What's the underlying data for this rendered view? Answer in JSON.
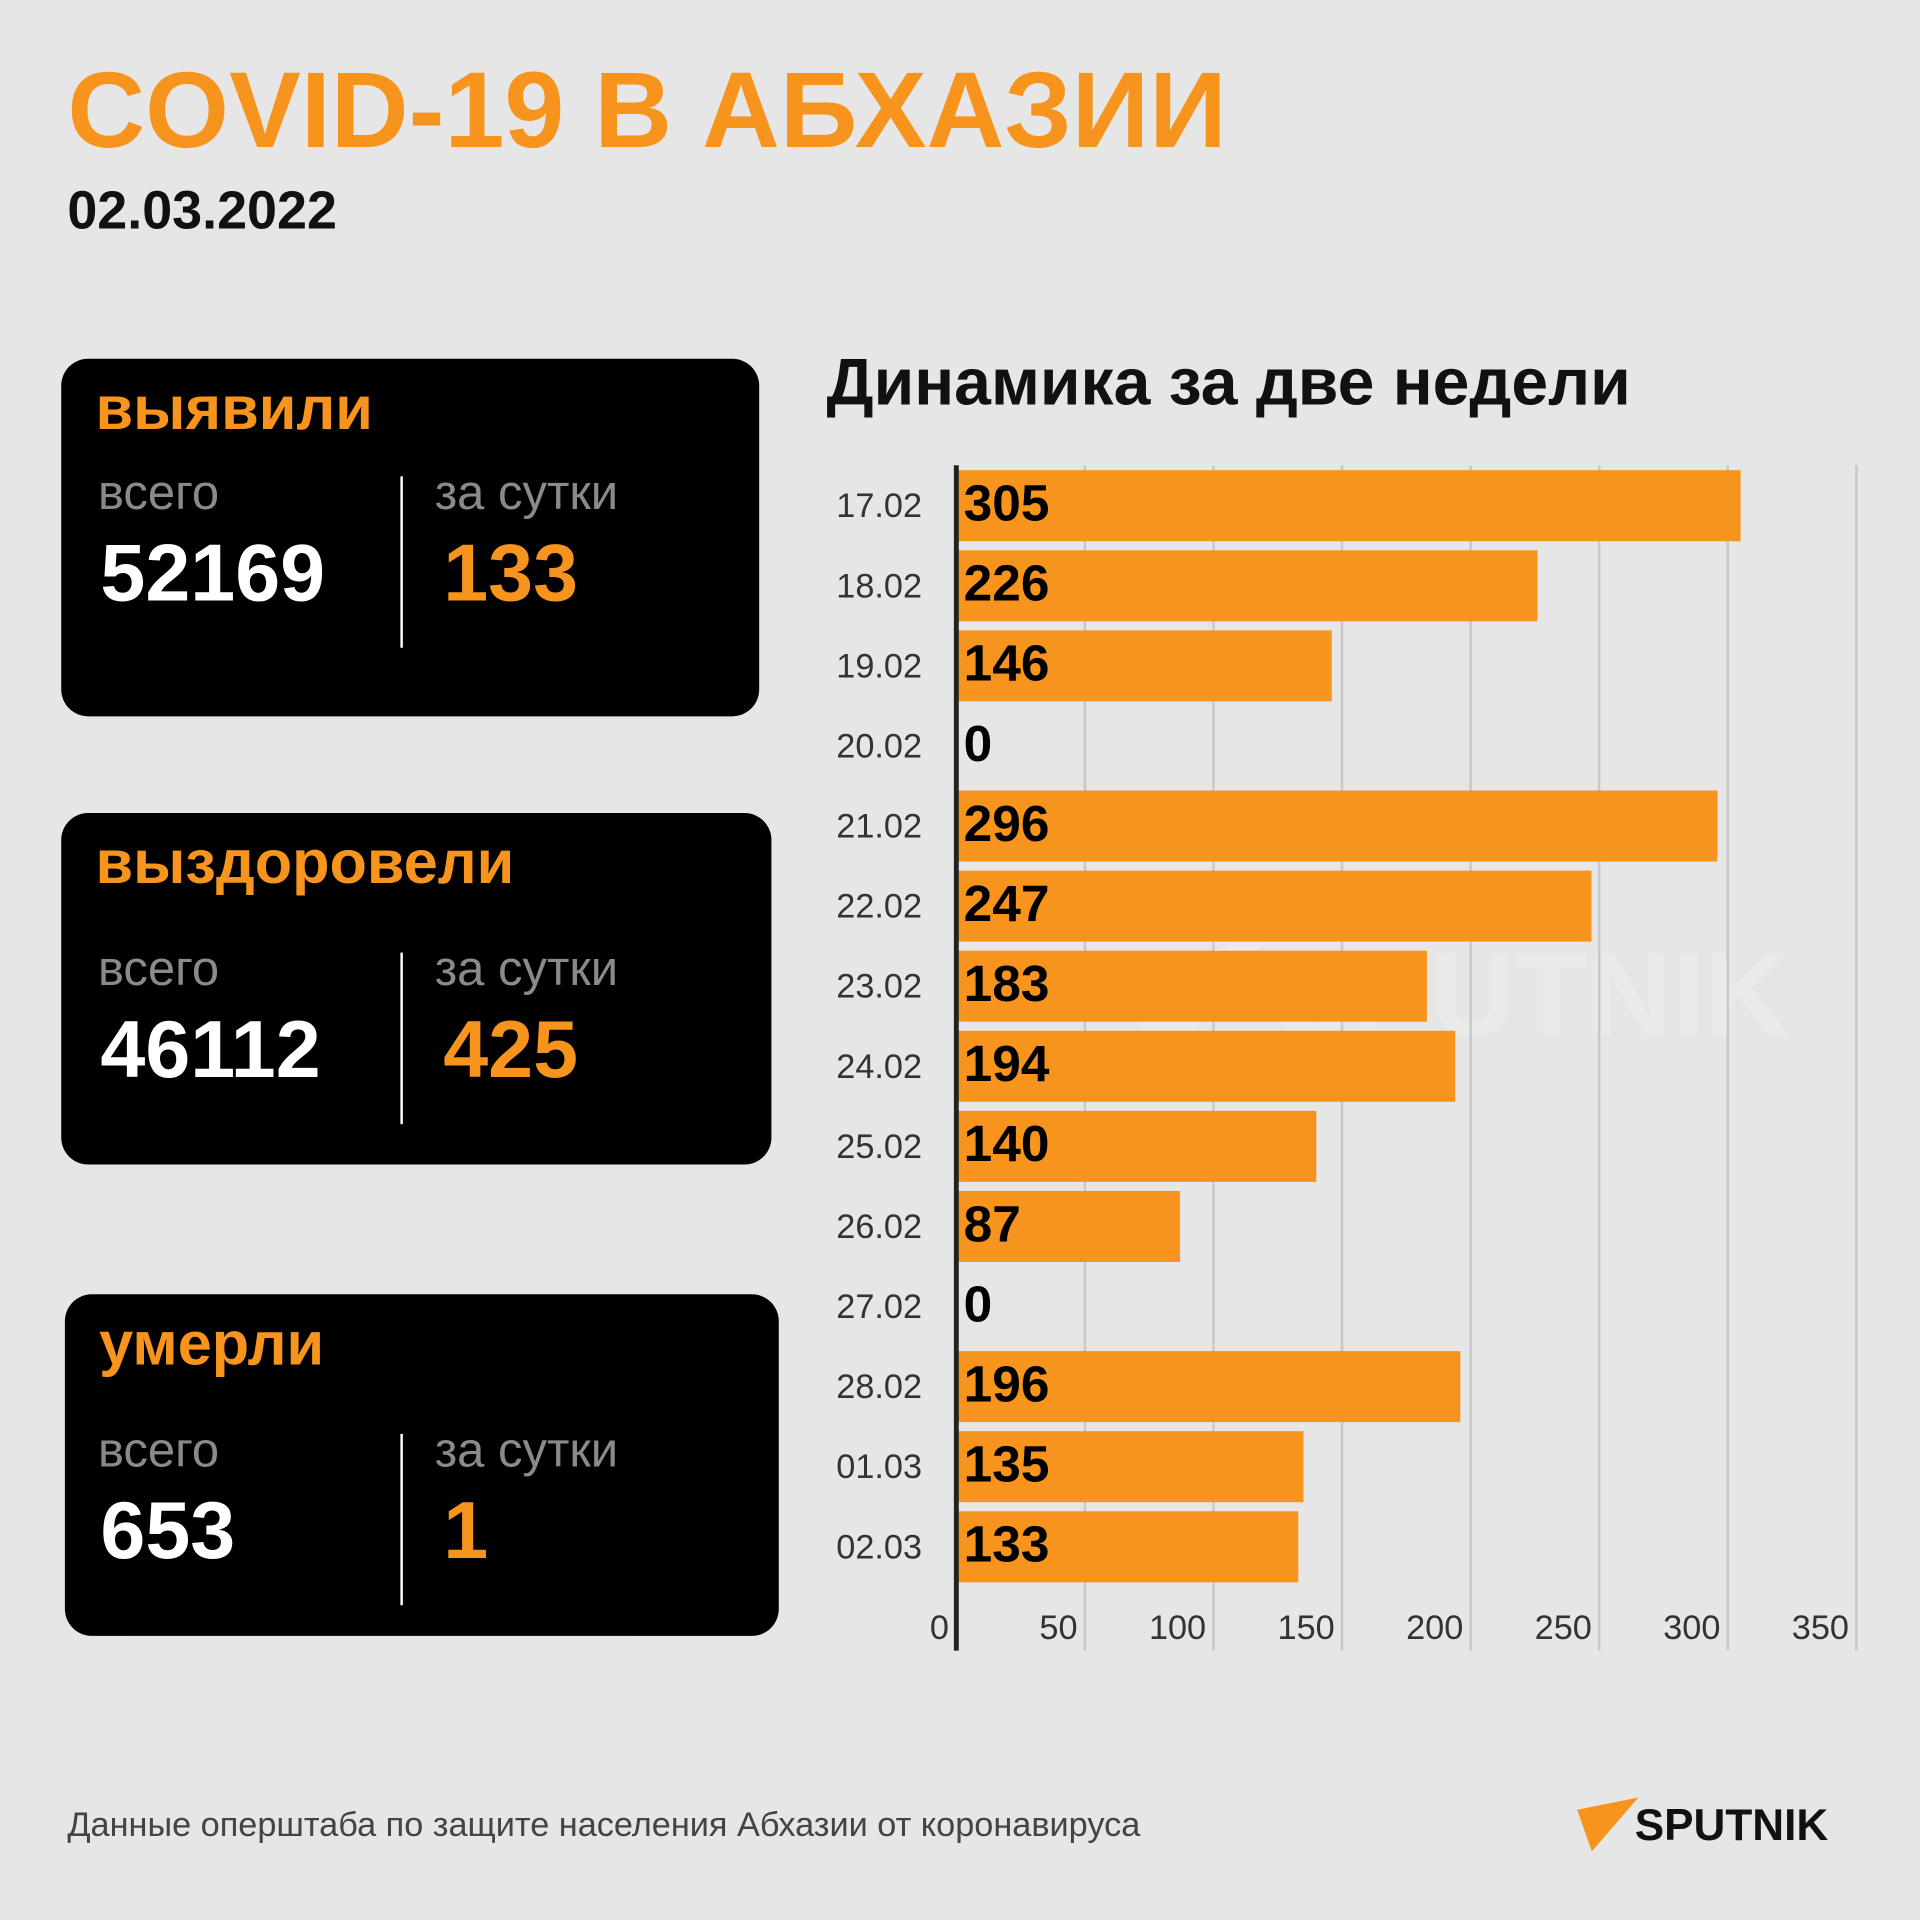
{
  "header": {
    "title": "COVID-19 В АБХАЗИИ",
    "date": "02.03.2022"
  },
  "cards": [
    {
      "title": "выявили",
      "total_label": "всего",
      "total": "52169",
      "daily_label": "за сутки",
      "daily": "133"
    },
    {
      "title": "выздоровели",
      "total_label": "всего",
      "total": "46112",
      "daily_label": "за сутки",
      "daily": "425"
    },
    {
      "title": "умерли",
      "total_label": "всего",
      "total": "653",
      "daily_label": "за сутки",
      "daily": "1"
    }
  ],
  "chart_data": {
    "type": "hbar",
    "title": "Динамика за две недели",
    "categories": [
      "17.02",
      "18.02",
      "19.02",
      "20.02",
      "21.02",
      "22.02",
      "23.02",
      "24.02",
      "25.02",
      "26.02",
      "27.02",
      "28.02",
      "01.03",
      "02.03"
    ],
    "values": [
      305,
      226,
      146,
      0,
      296,
      247,
      183,
      194,
      140,
      87,
      0,
      196,
      135,
      133
    ],
    "color": "#f7941d",
    "xlim": [
      0,
      350
    ],
    "xticks": [
      0,
      50,
      100,
      150,
      200,
      250,
      300,
      350
    ],
    "grid": true
  },
  "footer": {
    "source": "Данные оперштаба по защите населения Абхазии от коронавируса",
    "logo": "SPUTNIK"
  }
}
